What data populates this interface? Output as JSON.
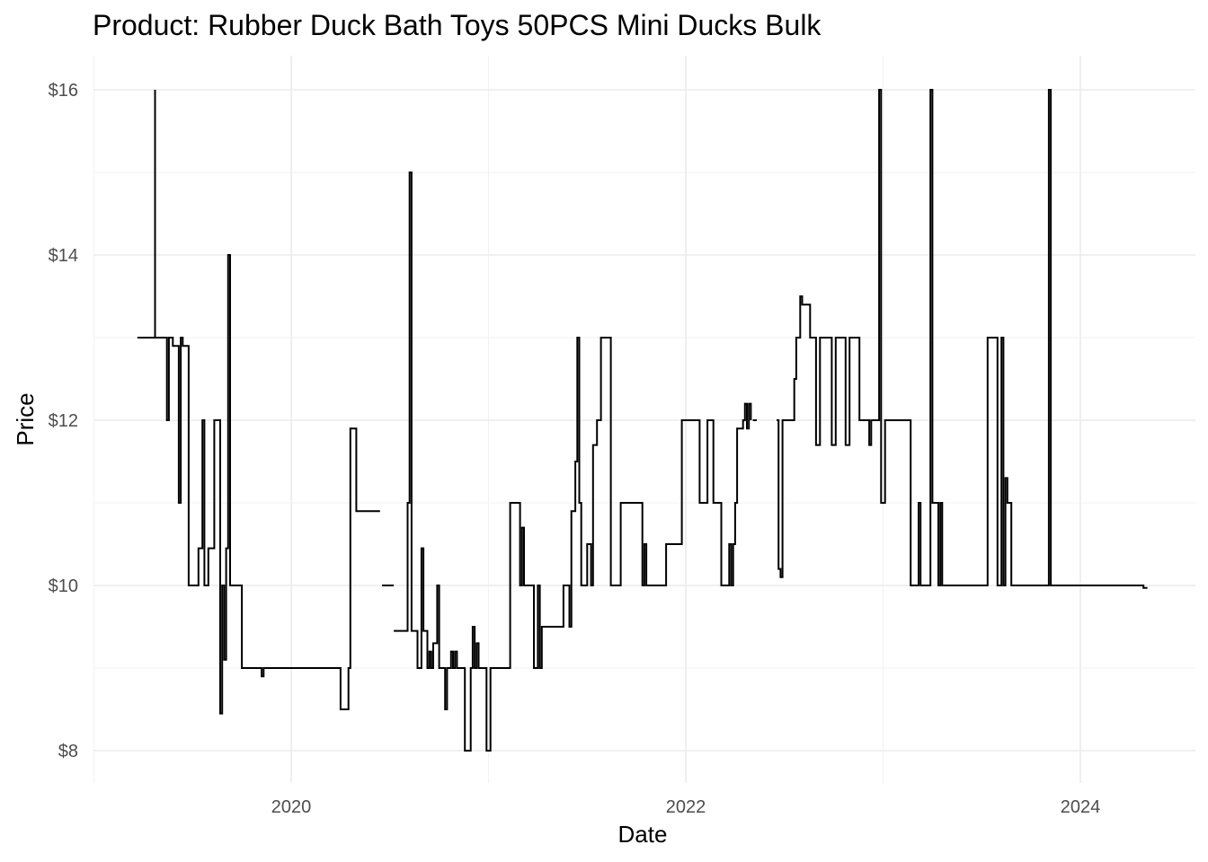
{
  "chart_data": {
    "type": "line",
    "title": "Product: Rubber Duck Bath Toys 50PCS Mini Ducks Bulk",
    "xlabel": "Date",
    "ylabel": "Price",
    "x_ticks": [
      2020,
      2022,
      2024
    ],
    "y_ticks": [
      "$8",
      "$10",
      "$12",
      "$14",
      "$16"
    ],
    "y_tick_values": [
      8,
      10,
      12,
      14,
      16
    ],
    "xlim": [
      2019.0,
      2024.55
    ],
    "ylim": [
      7.6,
      16.3
    ],
    "grid": true,
    "line_color": "#000000",
    "series": [
      {
        "segments": [
          [
            [
              2019.22,
              13
            ],
            [
              2019.31,
              13
            ],
            [
              2019.31,
              16
            ],
            [
              2019.31,
              13
            ],
            [
              2019.37,
              13
            ],
            [
              2019.37,
              12
            ],
            [
              2019.38,
              12
            ],
            [
              2019.38,
              13
            ],
            [
              2019.4,
              13
            ],
            [
              2019.4,
              12.9
            ],
            [
              2019.43,
              12.9
            ],
            [
              2019.43,
              11
            ],
            [
              2019.44,
              11
            ],
            [
              2019.44,
              13
            ],
            [
              2019.45,
              13
            ],
            [
              2019.45,
              12.9
            ],
            [
              2019.48,
              12.9
            ],
            [
              2019.48,
              10
            ],
            [
              2019.53,
              10
            ],
            [
              2019.53,
              10.45
            ],
            [
              2019.55,
              10.45
            ],
            [
              2019.55,
              12
            ],
            [
              2019.56,
              12
            ],
            [
              2019.56,
              10
            ],
            [
              2019.58,
              10
            ],
            [
              2019.58,
              10.45
            ],
            [
              2019.61,
              10.45
            ],
            [
              2019.61,
              12
            ],
            [
              2019.64,
              12
            ],
            [
              2019.64,
              8.45
            ],
            [
              2019.65,
              8.45
            ],
            [
              2019.65,
              10
            ],
            [
              2019.66,
              10
            ],
            [
              2019.66,
              9.1
            ],
            [
              2019.67,
              9.1
            ],
            [
              2019.67,
              10.45
            ],
            [
              2019.68,
              10.45
            ],
            [
              2019.68,
              14
            ],
            [
              2019.69,
              14
            ],
            [
              2019.69,
              10
            ],
            [
              2019.75,
              10
            ],
            [
              2019.75,
              9
            ],
            [
              2019.85,
              9
            ],
            [
              2019.85,
              8.9
            ],
            [
              2019.86,
              8.9
            ],
            [
              2019.86,
              9
            ],
            [
              2020.25,
              9
            ],
            [
              2020.25,
              8.5
            ],
            [
              2020.29,
              8.5
            ],
            [
              2020.29,
              9
            ],
            [
              2020.3,
              9
            ],
            [
              2020.3,
              11.9
            ],
            [
              2020.33,
              11.9
            ],
            [
              2020.33,
              10.9
            ],
            [
              2020.45,
              10.9
            ]
          ],
          [
            [
              2020.46,
              10
            ],
            [
              2020.52,
              10
            ]
          ],
          [
            [
              2020.52,
              9.45
            ],
            [
              2020.59,
              9.45
            ],
            [
              2020.59,
              11
            ],
            [
              2020.6,
              11
            ],
            [
              2020.6,
              15
            ],
            [
              2020.61,
              15
            ],
            [
              2020.61,
              9.45
            ],
            [
              2020.64,
              9.45
            ],
            [
              2020.64,
              9
            ],
            [
              2020.66,
              9
            ],
            [
              2020.66,
              10.45
            ],
            [
              2020.67,
              10.45
            ],
            [
              2020.67,
              9.45
            ],
            [
              2020.69,
              9.45
            ],
            [
              2020.69,
              9
            ],
            [
              2020.7,
              9
            ],
            [
              2020.7,
              9.2
            ],
            [
              2020.71,
              9.2
            ],
            [
              2020.71,
              9
            ],
            [
              2020.72,
              9
            ],
            [
              2020.72,
              9.3
            ],
            [
              2020.74,
              9.3
            ],
            [
              2020.74,
              10
            ],
            [
              2020.75,
              10
            ],
            [
              2020.75,
              9
            ],
            [
              2020.78,
              9
            ],
            [
              2020.78,
              8.5
            ],
            [
              2020.79,
              8.5
            ],
            [
              2020.79,
              9
            ],
            [
              2020.81,
              9
            ],
            [
              2020.81,
              9.2
            ],
            [
              2020.82,
              9.2
            ],
            [
              2020.82,
              9
            ],
            [
              2020.83,
              9
            ],
            [
              2020.83,
              9.2
            ],
            [
              2020.84,
              9.2
            ],
            [
              2020.84,
              9
            ],
            [
              2020.88,
              9
            ],
            [
              2020.88,
              8
            ],
            [
              2020.91,
              8
            ],
            [
              2020.91,
              9
            ],
            [
              2020.92,
              9
            ],
            [
              2020.92,
              9.5
            ],
            [
              2020.93,
              9.5
            ],
            [
              2020.93,
              9
            ],
            [
              2020.94,
              9
            ],
            [
              2020.94,
              9.3
            ],
            [
              2020.95,
              9.3
            ],
            [
              2020.95,
              9
            ],
            [
              2020.99,
              9
            ],
            [
              2020.99,
              8
            ],
            [
              2021.01,
              8
            ],
            [
              2021.01,
              9
            ],
            [
              2021.11,
              9
            ],
            [
              2021.11,
              11
            ],
            [
              2021.16,
              11
            ],
            [
              2021.16,
              10
            ],
            [
              2021.17,
              10
            ],
            [
              2021.17,
              10.7
            ],
            [
              2021.18,
              10.7
            ],
            [
              2021.18,
              10
            ],
            [
              2021.23,
              10
            ],
            [
              2021.23,
              9
            ],
            [
              2021.25,
              9
            ],
            [
              2021.25,
              10
            ],
            [
              2021.26,
              10
            ],
            [
              2021.26,
              9
            ],
            [
              2021.27,
              9
            ],
            [
              2021.27,
              9.5
            ],
            [
              2021.38,
              9.5
            ],
            [
              2021.38,
              10
            ],
            [
              2021.41,
              10
            ],
            [
              2021.41,
              9.5
            ],
            [
              2021.42,
              9.5
            ],
            [
              2021.42,
              10.9
            ],
            [
              2021.44,
              10.9
            ],
            [
              2021.44,
              11.5
            ],
            [
              2021.45,
              11.5
            ],
            [
              2021.45,
              13
            ],
            [
              2021.46,
              13
            ],
            [
              2021.46,
              11
            ],
            [
              2021.47,
              11
            ],
            [
              2021.47,
              10
            ],
            [
              2021.5,
              10
            ],
            [
              2021.5,
              10.5
            ],
            [
              2021.52,
              10.5
            ],
            [
              2021.52,
              10
            ],
            [
              2021.53,
              10
            ],
            [
              2021.53,
              11.7
            ],
            [
              2021.55,
              11.7
            ],
            [
              2021.55,
              12
            ],
            [
              2021.57,
              12
            ],
            [
              2021.57,
              13
            ],
            [
              2021.62,
              13
            ],
            [
              2021.62,
              10
            ],
            [
              2021.67,
              10
            ],
            [
              2021.67,
              11
            ],
            [
              2021.78,
              11
            ],
            [
              2021.78,
              10
            ],
            [
              2021.79,
              10
            ],
            [
              2021.79,
              10.5
            ],
            [
              2021.8,
              10.5
            ],
            [
              2021.8,
              10
            ],
            [
              2021.9,
              10
            ],
            [
              2021.9,
              10.5
            ],
            [
              2021.98,
              10.5
            ],
            [
              2021.98,
              12
            ],
            [
              2022.07,
              12
            ],
            [
              2022.07,
              11
            ],
            [
              2022.11,
              11
            ],
            [
              2022.11,
              12
            ],
            [
              2022.14,
              12
            ],
            [
              2022.14,
              11
            ],
            [
              2022.18,
              11
            ],
            [
              2022.18,
              10
            ],
            [
              2022.22,
              10
            ],
            [
              2022.22,
              10.5
            ],
            [
              2022.23,
              10.5
            ],
            [
              2022.23,
              10
            ],
            [
              2022.24,
              10
            ],
            [
              2022.24,
              10.5
            ],
            [
              2022.25,
              10.5
            ],
            [
              2022.25,
              11
            ],
            [
              2022.26,
              11
            ],
            [
              2022.26,
              11.9
            ],
            [
              2022.29,
              11.9
            ],
            [
              2022.29,
              12
            ],
            [
              2022.3,
              12
            ],
            [
              2022.3,
              12.2
            ],
            [
              2022.31,
              12.2
            ],
            [
              2022.31,
              11.9
            ],
            [
              2022.32,
              11.9
            ],
            [
              2022.32,
              12.2
            ],
            [
              2022.33,
              12.2
            ],
            [
              2022.33,
              12
            ]
          ],
          [
            [
              2022.34,
              12
            ],
            [
              2022.36,
              12
            ]
          ],
          [
            [
              2022.46,
              12
            ],
            [
              2022.47,
              12
            ],
            [
              2022.47,
              10.2
            ],
            [
              2022.48,
              10.2
            ],
            [
              2022.48,
              10.1
            ],
            [
              2022.49,
              10.1
            ],
            [
              2022.49,
              12
            ],
            [
              2022.55,
              12
            ],
            [
              2022.55,
              12.5
            ],
            [
              2022.56,
              12.5
            ],
            [
              2022.56,
              13
            ],
            [
              2022.58,
              13
            ],
            [
              2022.58,
              13.5
            ],
            [
              2022.59,
              13.5
            ],
            [
              2022.59,
              13.4
            ],
            [
              2022.63,
              13.4
            ],
            [
              2022.63,
              13
            ],
            [
              2022.66,
              13
            ],
            [
              2022.66,
              11.7
            ],
            [
              2022.68,
              11.7
            ],
            [
              2022.68,
              13
            ],
            [
              2022.74,
              13
            ],
            [
              2022.74,
              11.7
            ],
            [
              2022.76,
              11.7
            ],
            [
              2022.76,
              13
            ],
            [
              2022.81,
              13
            ],
            [
              2022.81,
              11.7
            ],
            [
              2022.83,
              11.7
            ],
            [
              2022.83,
              13
            ],
            [
              2022.88,
              13
            ],
            [
              2022.88,
              12
            ],
            [
              2022.93,
              12
            ],
            [
              2022.93,
              11.7
            ],
            [
              2022.94,
              11.7
            ],
            [
              2022.94,
              12
            ],
            [
              2022.98,
              12
            ],
            [
              2022.98,
              16
            ],
            [
              2022.99,
              16
            ],
            [
              2022.99,
              11
            ],
            [
              2023.01,
              11
            ],
            [
              2023.01,
              12
            ],
            [
              2023.14,
              12
            ],
            [
              2023.14,
              10
            ],
            [
              2023.18,
              10
            ],
            [
              2023.18,
              11
            ],
            [
              2023.19,
              11
            ],
            [
              2023.19,
              10
            ],
            [
              2023.24,
              10
            ],
            [
              2023.24,
              16
            ],
            [
              2023.25,
              16
            ],
            [
              2023.25,
              11
            ],
            [
              2023.28,
              11
            ],
            [
              2023.28,
              10
            ],
            [
              2023.29,
              10
            ],
            [
              2023.29,
              11
            ],
            [
              2023.3,
              11
            ],
            [
              2023.3,
              10
            ],
            [
              2023.53,
              10
            ],
            [
              2023.53,
              13
            ],
            [
              2023.58,
              13
            ],
            [
              2023.58,
              10
            ],
            [
              2023.6,
              10
            ],
            [
              2023.6,
              13
            ],
            [
              2023.61,
              13
            ],
            [
              2023.61,
              10
            ],
            [
              2023.62,
              10
            ],
            [
              2023.62,
              11.3
            ],
            [
              2023.63,
              11.3
            ],
            [
              2023.63,
              11
            ],
            [
              2023.65,
              11
            ],
            [
              2023.65,
              10
            ],
            [
              2023.84,
              10
            ],
            [
              2023.84,
              16
            ],
            [
              2023.85,
              16
            ],
            [
              2023.85,
              10
            ],
            [
              2024.32,
              10
            ],
            [
              2024.32,
              9.97
            ],
            [
              2024.34,
              9.97
            ]
          ]
        ]
      }
    ]
  }
}
